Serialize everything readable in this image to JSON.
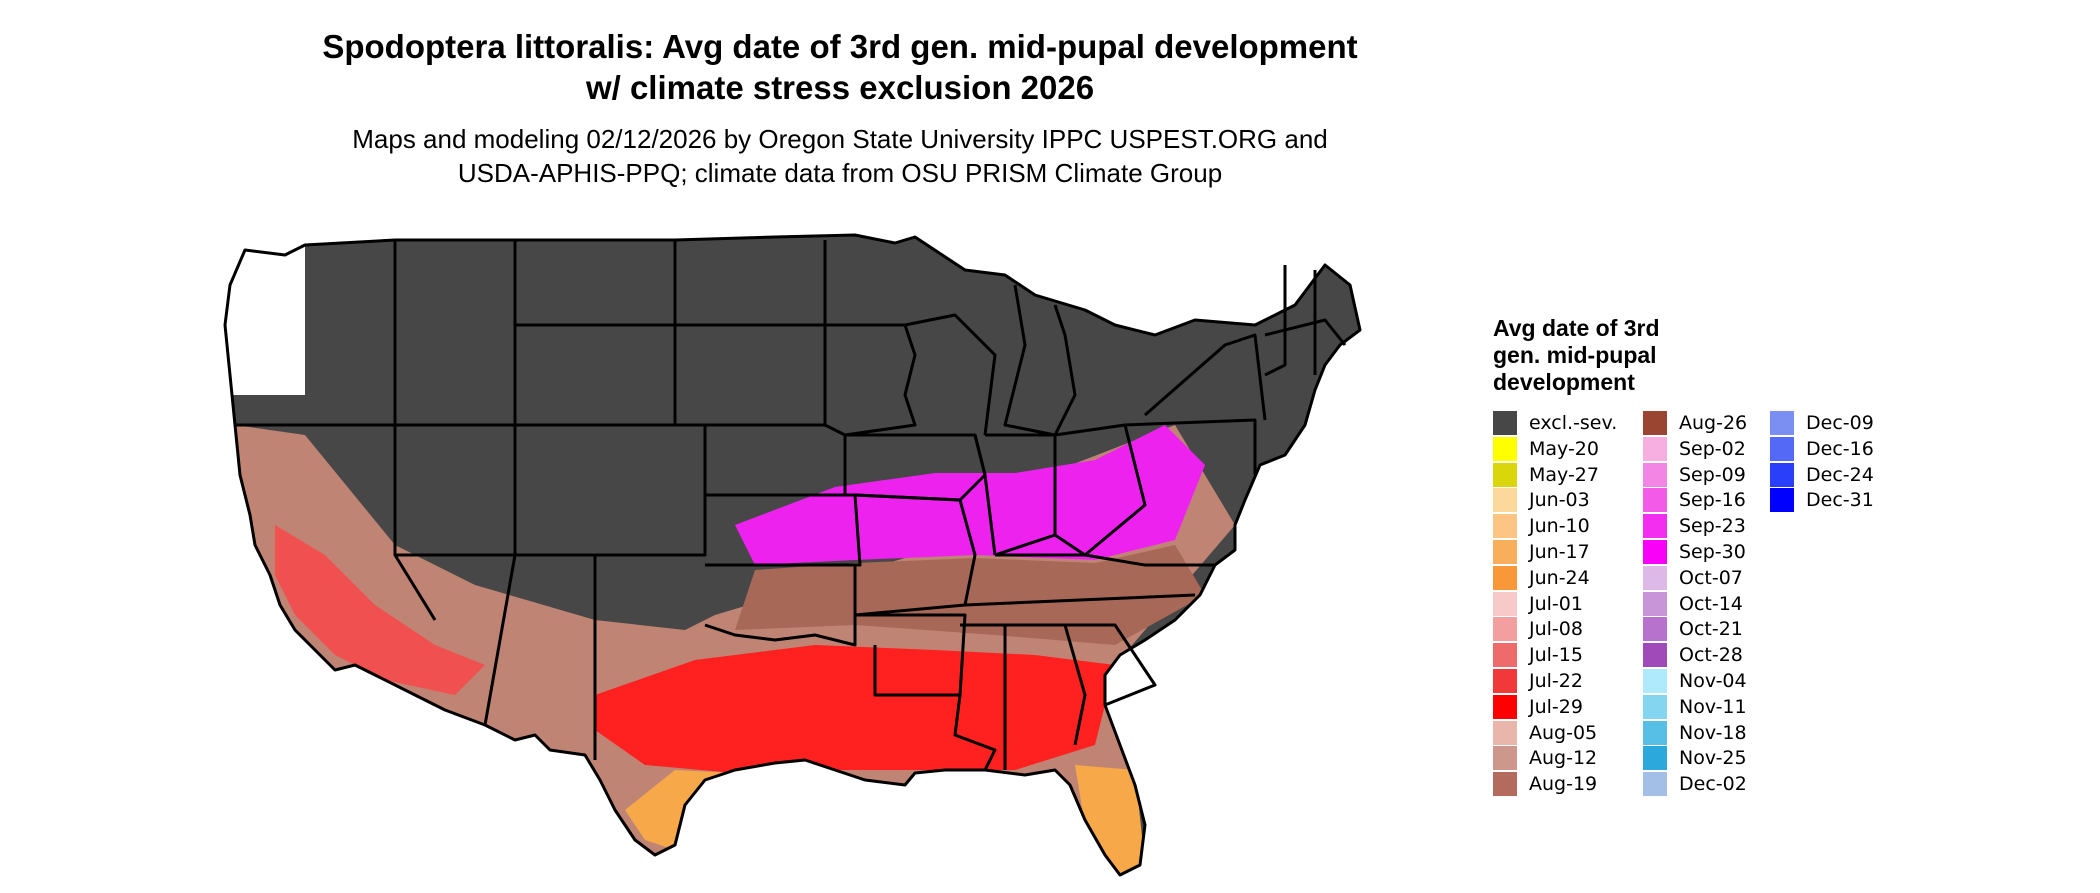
{
  "title": {
    "line1": "Spodoptera littoralis: Avg date of 3rd gen. mid-pupal development",
    "line2": "w/ climate stress exclusion 2026"
  },
  "subtitle": {
    "line1": "Maps and modeling 02/12/2026 by Oregon State University IPPC USPEST.ORG and",
    "line2": "USDA-APHIS-PPQ; climate data from OSU PRISM Climate Group"
  },
  "map": {
    "excluded_color": "#474747",
    "border_color": "#000000",
    "summer_south_color": "#ff2020",
    "florida_texas_color": "#f7a848",
    "midlatitude_color": "#a86858",
    "northern_band_color": "#ee22ee"
  },
  "legend": {
    "title_lines": [
      "Avg date of 3rd",
      "gen. mid-pupal",
      "development"
    ],
    "columns": [
      [
        {
          "label": "excl.-sev.",
          "color": "#474747"
        },
        {
          "label": "May-20",
          "color": "#ffff00"
        },
        {
          "label": "May-27",
          "color": "#d9d60c"
        },
        {
          "label": "Jun-03",
          "color": "#fdd89c"
        },
        {
          "label": "Jun-10",
          "color": "#fcc583"
        },
        {
          "label": "Jun-17",
          "color": "#f9ae5c"
        },
        {
          "label": "Jun-24",
          "color": "#f89838"
        },
        {
          "label": "Jul-01",
          "color": "#f7c9c9"
        },
        {
          "label": "Jul-08",
          "color": "#f39f9f"
        },
        {
          "label": "Jul-15",
          "color": "#ef6a6a"
        },
        {
          "label": "Jul-22",
          "color": "#f23939"
        },
        {
          "label": "Jul-29",
          "color": "#ff0000"
        },
        {
          "label": "Aug-05",
          "color": "#e9b6ab"
        },
        {
          "label": "Aug-12",
          "color": "#cd978b"
        },
        {
          "label": "Aug-19",
          "color": "#b26b5c"
        }
      ],
      [
        {
          "label": "Aug-26",
          "color": "#9a4532"
        },
        {
          "label": "Sep-02",
          "color": "#f7aee0"
        },
        {
          "label": "Sep-09",
          "color": "#f385e4"
        },
        {
          "label": "Sep-16",
          "color": "#f25ae7"
        },
        {
          "label": "Sep-23",
          "color": "#f42ef0"
        },
        {
          "label": "Sep-30",
          "color": "#f900f9"
        },
        {
          "label": "Oct-07",
          "color": "#dcb9e6"
        },
        {
          "label": "Oct-14",
          "color": "#c896d8"
        },
        {
          "label": "Oct-21",
          "color": "#b672cc"
        },
        {
          "label": "Oct-28",
          "color": "#a04ab9"
        },
        {
          "label": "Nov-04",
          "color": "#aeeafb"
        },
        {
          "label": "Nov-11",
          "color": "#84d5f0"
        },
        {
          "label": "Nov-18",
          "color": "#57bfe5"
        },
        {
          "label": "Nov-25",
          "color": "#2ca8dc"
        },
        {
          "label": "Dec-02",
          "color": "#a3bfe6"
        }
      ],
      [
        {
          "label": "Dec-09",
          "color": "#7a8ff1"
        },
        {
          "label": "Dec-16",
          "color": "#5469f6"
        },
        {
          "label": "Dec-24",
          "color": "#2a3ffa"
        },
        {
          "label": "Dec-31",
          "color": "#0000ff"
        }
      ]
    ]
  }
}
